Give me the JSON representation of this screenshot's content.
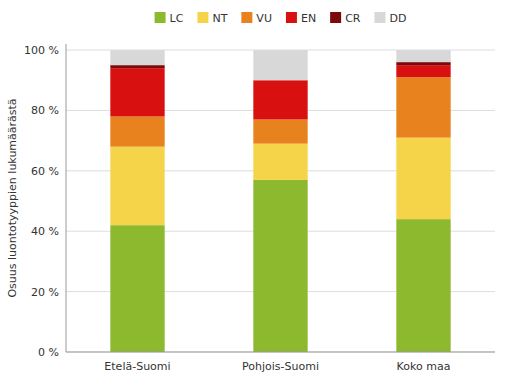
{
  "chart_data": {
    "type": "bar",
    "stacked": true,
    "categories": [
      "Etelä-Suomi",
      "Pohjois-Suomi",
      "Koko maa"
    ],
    "series": [
      {
        "name": "LC",
        "color": "#8db92e",
        "values": [
          42,
          57,
          44
        ]
      },
      {
        "name": "NT",
        "color": "#f5d44a",
        "values": [
          26,
          12,
          27
        ]
      },
      {
        "name": "VU",
        "color": "#e8821e",
        "values": [
          10,
          8,
          20
        ]
      },
      {
        "name": "EN",
        "color": "#d91010",
        "values": [
          16,
          13,
          4
        ]
      },
      {
        "name": "CR",
        "color": "#7b0a0a",
        "values": [
          1,
          0,
          1
        ]
      },
      {
        "name": "DD",
        "color": "#d8d8d8",
        "values": [
          5,
          10,
          4
        ]
      }
    ],
    "ylabel": "Osuus luontotyyppien lukumäärästä",
    "ylim": [
      0,
      102
    ],
    "yticks": [
      {
        "value": 0,
        "label": "0 %"
      },
      {
        "value": 20,
        "label": "20 %"
      },
      {
        "value": 40,
        "label": "40 %"
      },
      {
        "value": 60,
        "label": "60 %"
      },
      {
        "value": 80,
        "label": "80 %"
      },
      {
        "value": 100,
        "label": "100 %"
      }
    ],
    "grid": true,
    "legend": "top"
  }
}
